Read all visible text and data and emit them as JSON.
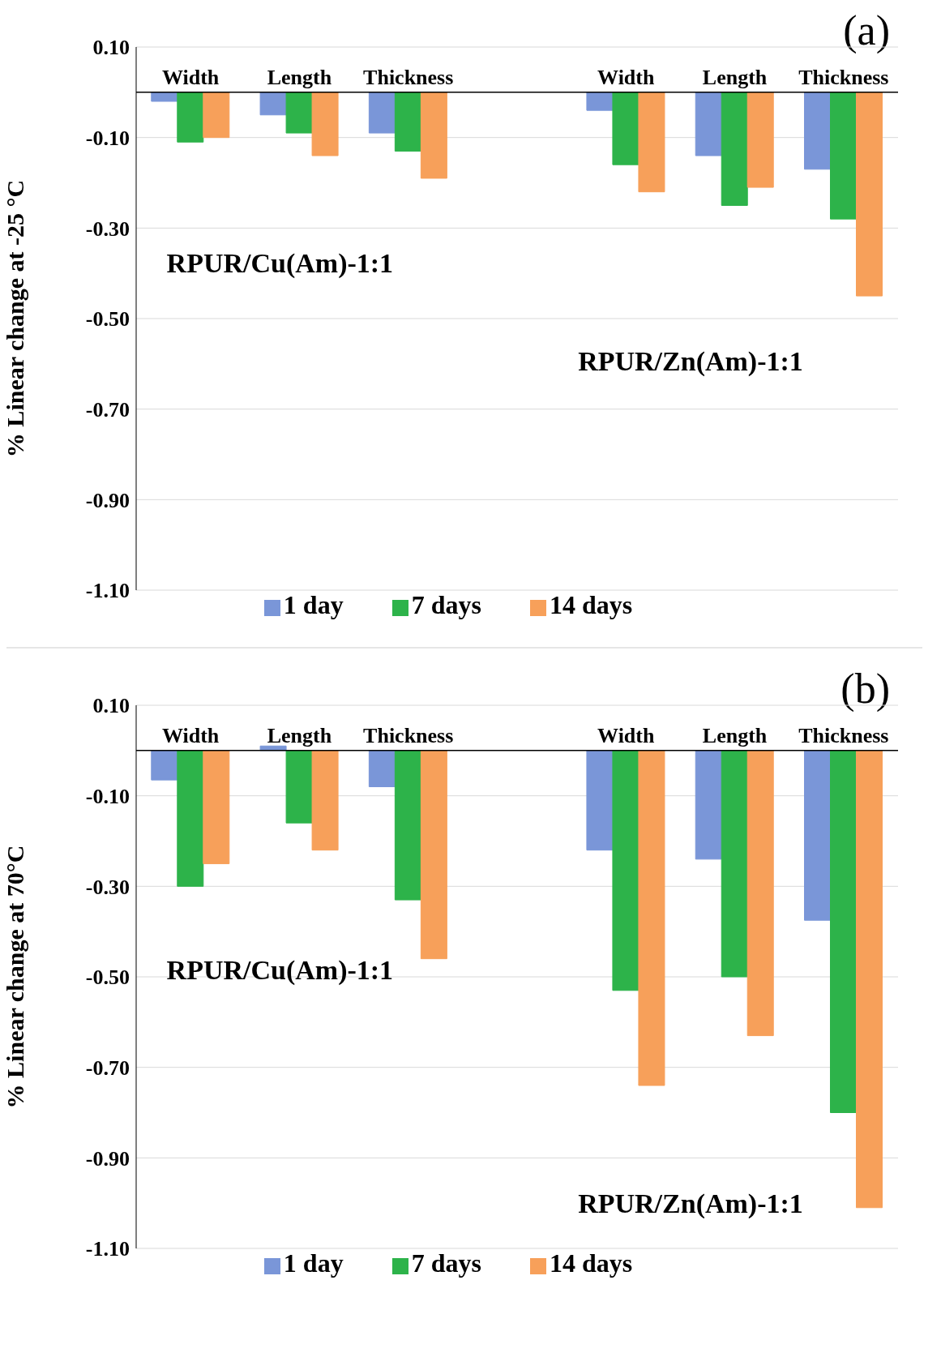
{
  "chart_data": [
    {
      "type": "bar",
      "title": "(a)",
      "ylabel": "% Linear change at -25 °C",
      "categories": [
        "Width",
        "Length",
        "Thickness",
        null,
        "Width",
        "Length",
        "Thickness"
      ],
      "series": [
        {
          "name": "1 day",
          "color": "#7a96d8",
          "values": [
            -0.02,
            -0.05,
            -0.09,
            null,
            -0.04,
            -0.14,
            -0.17
          ]
        },
        {
          "name": "7 days",
          "color": "#2db34a",
          "values": [
            -0.11,
            -0.09,
            -0.13,
            null,
            -0.16,
            -0.25,
            -0.28
          ]
        },
        {
          "name": "14 days",
          "color": "#f7a05a",
          "values": [
            -0.1,
            -0.14,
            -0.19,
            null,
            -0.22,
            -0.21,
            -0.45
          ]
        }
      ],
      "ylim": [
        -1.1,
        0.1
      ],
      "yticks": [
        {
          "value": 0.1,
          "label": "0.10"
        },
        {
          "value": -0.1,
          "label": "-0.10"
        },
        {
          "value": -0.3,
          "label": "-0.30"
        },
        {
          "value": -0.5,
          "label": "-0.50"
        },
        {
          "value": -0.7,
          "label": "-0.70"
        },
        {
          "value": -0.9,
          "label": "-0.90"
        },
        {
          "value": -1.1,
          "label": "-1.10"
        }
      ],
      "grid": "y",
      "legend": "bottom",
      "annotations": [
        "RPUR/Cu(Am)-1:1",
        "RPUR/Zn(Am)-1:1"
      ]
    },
    {
      "type": "bar",
      "title": "(b)",
      "ylabel": "% Linear change at 70°C",
      "categories": [
        "Width",
        "Length",
        "Thickness",
        null,
        "Width",
        "Length",
        "Thickness"
      ],
      "series": [
        {
          "name": "1 day",
          "color": "#7a96d8",
          "values": [
            -0.065,
            0.01,
            -0.08,
            null,
            -0.22,
            -0.24,
            -0.375
          ]
        },
        {
          "name": "7 days",
          "color": "#2db34a",
          "values": [
            -0.3,
            -0.16,
            -0.33,
            null,
            -0.53,
            -0.5,
            -0.8
          ]
        },
        {
          "name": "14 days",
          "color": "#f7a05a",
          "values": [
            -0.25,
            -0.22,
            -0.46,
            null,
            -0.74,
            -0.63,
            -1.01
          ]
        }
      ],
      "ylim": [
        -1.1,
        0.1
      ],
      "yticks": [
        {
          "value": 0.1,
          "label": "0.10"
        },
        {
          "value": -0.1,
          "label": "-0.10"
        },
        {
          "value": -0.3,
          "label": "-0.30"
        },
        {
          "value": -0.5,
          "label": "-0.50"
        },
        {
          "value": -0.7,
          "label": "-0.70"
        },
        {
          "value": -0.9,
          "label": "-0.90"
        },
        {
          "value": -1.1,
          "label": "-1.10"
        }
      ],
      "grid": "y",
      "legend": "bottom",
      "annotations": [
        "RPUR/Cu(Am)-1:1",
        "RPUR/Zn(Am)-1:1"
      ]
    }
  ]
}
